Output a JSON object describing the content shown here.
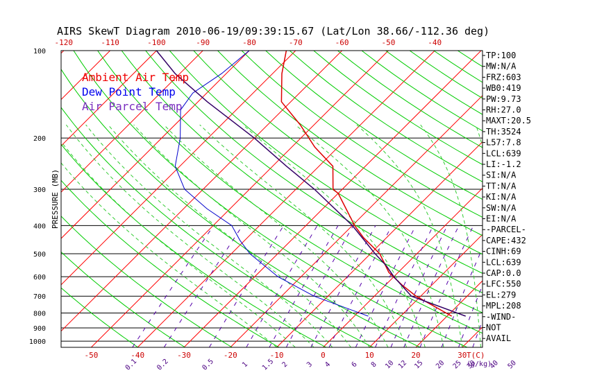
{
  "chart_data": {
    "type": "line",
    "title": "AIRS SkewT Diagram 2010-06-19/09:39:15.67 (Lat/Lon 38.66/-112.36 deg)",
    "ylabel": "PRESSURE (MB)",
    "xlabel": "T(C)",
    "mixing_ratio_label": "(g/kg)",
    "y_scale": "log",
    "ylim": [
      1050,
      100
    ],
    "xlim_bottom": [
      -55,
      45
    ],
    "pressure_ticks": [
      100,
      200,
      300,
      400,
      500,
      600,
      700,
      800,
      900,
      1000
    ],
    "temp_ticks_top": [
      "-120",
      "-110",
      "-100",
      "-90",
      "-80",
      "-70",
      "-60",
      "-50",
      "-40"
    ],
    "temp_ticks_bottom": [
      "-50",
      "-40",
      "-30",
      "-20",
      "-10",
      "0",
      "10",
      "20",
      "30"
    ],
    "mixing_ratio_ticks": [
      "0.1",
      "0.2",
      "0.5",
      "1",
      "1.5",
      "2",
      "3",
      "4",
      "6",
      "8",
      "10",
      "12",
      "15",
      "20",
      "25",
      "30",
      "40",
      "50"
    ],
    "series": [
      {
        "name": "Ambient Air Temp",
        "color": "#dd0000",
        "p": [
          820,
          700,
          640,
          580,
          500,
          440,
          400,
          350,
          310,
          300,
          250,
          215,
          180,
          150,
          120,
          100
        ],
        "t": [
          21,
          9,
          3.5,
          -2,
          -8,
          -15,
          -19.5,
          -25,
          -30,
          -32,
          -37,
          -45,
          -53,
          -62,
          -68,
          -72
        ]
      },
      {
        "name": "Dew Point Temp",
        "color": "#0000cc",
        "p": [
          820,
          700,
          600,
          500,
          450,
          400,
          350,
          300,
          250,
          200,
          160,
          140,
          120,
          100
        ],
        "t": [
          3,
          -13,
          -25,
          -36,
          -41,
          -46,
          -55,
          -64,
          -71,
          -76,
          -82,
          -83,
          -81,
          -80
        ]
      },
      {
        "name": "Air Parcel Temp",
        "color": "#330066",
        "p": [
          820,
          700,
          600,
          550,
          500,
          400,
          300,
          250,
          200,
          150,
          120,
          100
        ],
        "t": [
          24,
          8,
          0,
          -4,
          -9,
          -20,
          -36,
          -47,
          -60,
          -78,
          -91,
          -100
        ]
      }
    ],
    "indices": [
      "TP:100",
      "MW:N/A",
      "FRZ:603",
      "WB0:419",
      "PW:9.73",
      "RH:27.0",
      "MAXT:20.5",
      "TH:3524",
      "L57:7.8",
      "LCL:639",
      "LI:-1.2",
      "SI:N/A",
      "TT:N/A",
      "KI:N/A",
      "SW:N/A",
      "EI:N/A",
      "-PARCEL-",
      "CAPE:432",
      "CINH:69",
      "LCL:639",
      "CAP:0.0",
      "LFC:550",
      "EL:279",
      "MPL:208",
      "-WIND-",
      "NOT",
      "AVAIL"
    ],
    "colors": {
      "isotherm": "#ff0000",
      "dry_adiabat": "#00cc00",
      "moist_adiabat": "#33cc33",
      "mixing_ratio": "#5500aa",
      "isobar": "#000000"
    }
  }
}
